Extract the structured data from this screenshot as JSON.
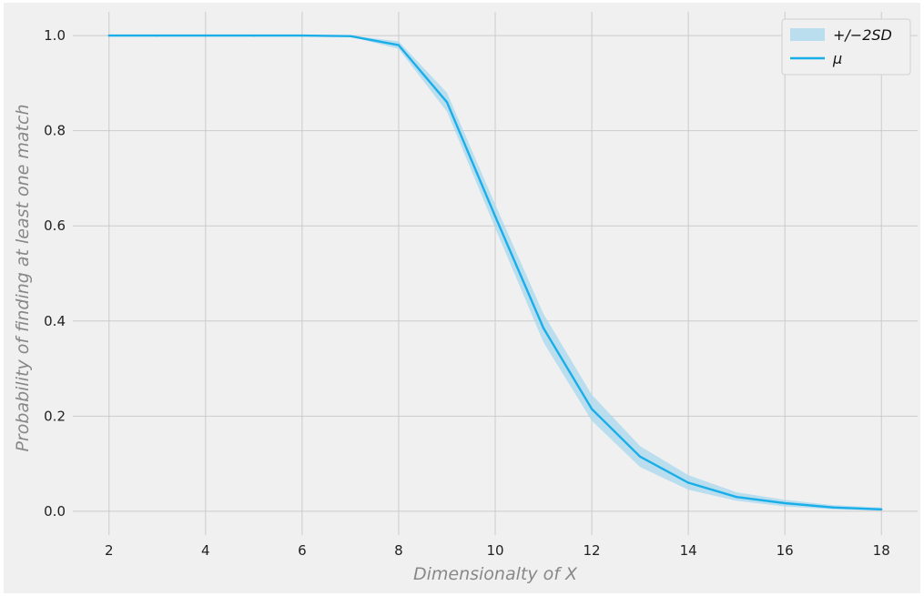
{
  "chart_data": {
    "type": "line",
    "xlabel": "Dimensionalty of X",
    "ylabel": "Probability of finding at least one match",
    "x": [
      2,
      3,
      4,
      5,
      6,
      7,
      8,
      9,
      10,
      11,
      12,
      13,
      14,
      15,
      16,
      17,
      18
    ],
    "series": [
      {
        "name": "μ",
        "kind": "line",
        "color": "#1aaee8",
        "values": [
          1.0,
          1.0,
          1.0,
          1.0,
          1.0,
          0.999,
          0.98,
          0.86,
          0.62,
          0.385,
          0.215,
          0.115,
          0.06,
          0.03,
          0.017,
          0.008,
          0.004
        ]
      },
      {
        "name": "+/−2SD",
        "kind": "band",
        "color": "#a9d8ef",
        "lower": [
          1.0,
          1.0,
          1.0,
          1.0,
          1.0,
          0.998,
          0.972,
          0.84,
          0.595,
          0.355,
          0.19,
          0.093,
          0.045,
          0.022,
          0.01,
          0.004,
          0.001
        ],
        "upper": [
          1.0,
          1.0,
          1.0,
          1.0,
          1.0,
          1.0,
          0.988,
          0.88,
          0.645,
          0.415,
          0.245,
          0.137,
          0.076,
          0.04,
          0.024,
          0.013,
          0.008
        ]
      }
    ],
    "xticks": [
      2,
      4,
      6,
      8,
      10,
      12,
      14,
      16,
      18
    ],
    "yticks": [
      0.0,
      0.2,
      0.4,
      0.6,
      0.8,
      1.0
    ],
    "ytick_labels": [
      "0.0",
      "0.2",
      "0.4",
      "0.6",
      "0.8",
      "1.0"
    ],
    "xlim": [
      1.25,
      18.75
    ],
    "ylim": [
      -0.05,
      1.05
    ],
    "grid": true,
    "legend": {
      "position": "top-right",
      "items": [
        {
          "label": "+/−2SD",
          "kind": "band"
        },
        {
          "label": "μ",
          "kind": "line"
        }
      ]
    },
    "background": "#f0f0f0",
    "grid_color": "#cbcbcb"
  }
}
